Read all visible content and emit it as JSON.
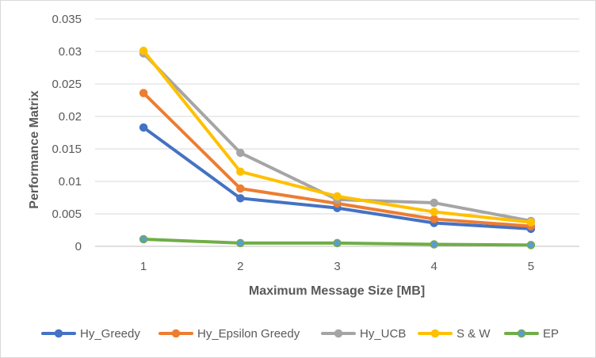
{
  "chart_data": {
    "type": "line",
    "title": "",
    "xlabel": "Maximum Message Size [MB]",
    "ylabel": "Performance Matrix",
    "x": [
      1,
      2,
      3,
      4,
      5
    ],
    "x_tick_labels": [
      "1",
      "2",
      "3",
      "4",
      "5"
    ],
    "ylim": [
      0,
      0.035
    ],
    "y_ticks": [
      0,
      0.005,
      0.01,
      0.015,
      0.02,
      0.025,
      0.03,
      0.035
    ],
    "y_tick_labels": [
      "0",
      "0.005",
      "0.01",
      "0.015",
      "0.02",
      "0.025",
      "0.03",
      "0.035"
    ],
    "grid": "horizontal",
    "legend_position": "bottom",
    "series": [
      {
        "name": "Hy_Greedy",
        "color": "#4472C4",
        "values": [
          0.0183,
          0.0074,
          0.0059,
          0.0036,
          0.0027
        ]
      },
      {
        "name": "Hy_Epsilon Greedy",
        "color": "#ED7D31",
        "values": [
          0.0236,
          0.0089,
          0.0066,
          0.0042,
          0.0031
        ]
      },
      {
        "name": "Hy_UCB",
        "color": "#A5A5A5",
        "values": [
          0.0297,
          0.0144,
          0.0072,
          0.0067,
          0.0039
        ]
      },
      {
        "name": "S & W",
        "color": "#FFC000",
        "values": [
          0.0301,
          0.0115,
          0.0077,
          0.0053,
          0.0037
        ]
      },
      {
        "name": "EP",
        "color": "#5B9BD5",
        "line_color": "#70AD47",
        "values": [
          0.0011,
          0.0005,
          0.0005,
          0.0003,
          0.0002
        ]
      }
    ]
  }
}
